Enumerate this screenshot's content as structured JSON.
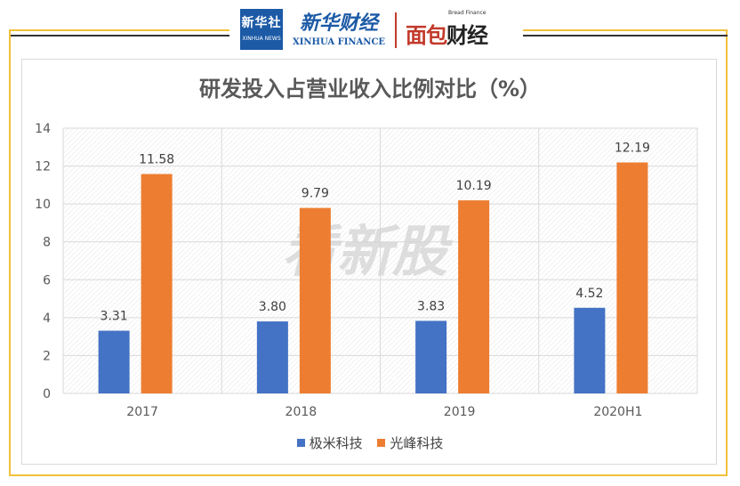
{
  "header": {
    "xinhua_badge_cn": "新华社",
    "xinhua_badge_en": "XINHUA NEWS",
    "xinhua_finance_cn": "新华财经",
    "xinhua_finance_en": "XINHUA FINANCE",
    "bread_finance_en": "Bread Finance",
    "bread_finance_logo_red": "面包",
    "bread_finance_logo_dark": "财经"
  },
  "watermark": "看新股",
  "colors": {
    "series_1": "#4472c4",
    "series_2": "#ed7d31",
    "frame": "#f2c13a",
    "grid": "#d9d9d9"
  },
  "chart_data": {
    "type": "bar",
    "title": "研发投入占营业收入比例对比（%）",
    "categories": [
      "2017",
      "2018",
      "2019",
      "2020H1"
    ],
    "series": [
      {
        "name": "极米科技",
        "values": [
          3.31,
          3.8,
          3.83,
          4.52
        ],
        "labels": [
          "3.31",
          "3.80",
          "3.83",
          "4.52"
        ]
      },
      {
        "name": "光峰科技",
        "values": [
          11.58,
          9.79,
          10.19,
          12.19
        ],
        "labels": [
          "11.58",
          "9.79",
          "10.19",
          "12.19"
        ]
      }
    ],
    "ylim": [
      0,
      14
    ],
    "yticks": [
      "0",
      "2",
      "4",
      "6",
      "8",
      "10",
      "12",
      "14"
    ],
    "xlabel": "",
    "ylabel": "",
    "grid": true,
    "legend_position": "bottom"
  }
}
